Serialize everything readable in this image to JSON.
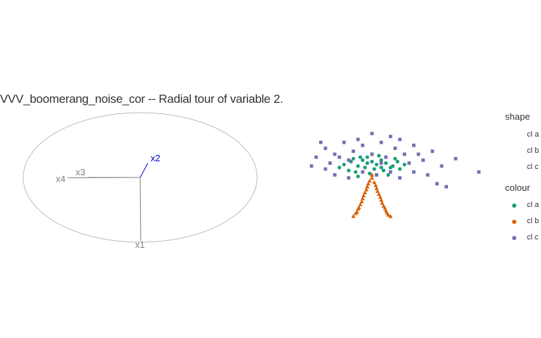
{
  "title": "VVV_boomerang_noise_cor -- Radial tour of variable 2.",
  "legend": {
    "shape_title": "shape",
    "colour_title": "colour",
    "shape_items": [
      {
        "label": "cl a",
        "shape": "none"
      },
      {
        "label": "cl b",
        "shape": "none"
      },
      {
        "label": "cl c",
        "shape": "none"
      }
    ],
    "colour_items": [
      {
        "label": "cl a",
        "color": "#1b9e77",
        "shape": "circle"
      },
      {
        "label": "cl b",
        "color": "#d95f02",
        "shape": "triangle"
      },
      {
        "label": "cl c",
        "color": "#7570b3",
        "shape": "square"
      }
    ]
  },
  "chart_data": {
    "type": "scatter",
    "subtype": "radial-tour-biplot",
    "title": "VVV_boomerang_noise_cor -- Radial tour of variable 2.",
    "axes_circle": true,
    "grid": false,
    "axis_vectors": [
      {
        "name": "x1",
        "x": 0.005,
        "y": -0.98,
        "color": "#808080"
      },
      {
        "name": "x2",
        "x": 0.065,
        "y": 0.22,
        "color": "#0000cc"
      },
      {
        "name": "x3",
        "x": -0.45,
        "y": 0.0,
        "color": "#808080"
      },
      {
        "name": "x4",
        "x": -0.62,
        "y": -0.005,
        "color": "#808080"
      }
    ],
    "series": [
      {
        "name": "cl a",
        "color": "#1b9e77",
        "shape": "circle",
        "points": [
          [
            -0.6,
            0.15
          ],
          [
            -0.45,
            0.25
          ],
          [
            -0.3,
            0.1
          ],
          [
            -0.2,
            0.3
          ],
          [
            -0.1,
            0.2
          ],
          [
            0.0,
            0.25
          ],
          [
            0.1,
            0.15
          ],
          [
            0.2,
            0.3
          ],
          [
            0.3,
            0.2
          ],
          [
            0.45,
            0.1
          ],
          [
            0.55,
            0.25
          ],
          [
            -0.5,
            -0.05
          ],
          [
            -0.35,
            -0.1
          ],
          [
            -0.15,
            0.05
          ],
          [
            0.05,
            0.0
          ],
          [
            0.25,
            -0.05
          ],
          [
            0.4,
            0.05
          ],
          [
            0.6,
            0.0
          ],
          [
            -0.25,
            0.4
          ],
          [
            0.15,
            0.45
          ],
          [
            -0.05,
            -0.15
          ],
          [
            0.35,
            -0.2
          ],
          [
            -0.4,
            0.35
          ],
          [
            0.5,
            0.35
          ],
          [
            0.7,
            0.15
          ],
          [
            -0.7,
            0.05
          ],
          [
            0.0,
            0.5
          ],
          [
            -0.1,
            0.4
          ],
          [
            0.2,
            0.05
          ],
          [
            -0.3,
            -0.25
          ]
        ]
      },
      {
        "name": "cl b",
        "color": "#d95f02",
        "shape": "triangle",
        "points": [
          [
            0.0,
            -0.2
          ],
          [
            -0.05,
            -0.4
          ],
          [
            0.05,
            -0.45
          ],
          [
            -0.1,
            -0.6
          ],
          [
            0.1,
            -0.65
          ],
          [
            -0.15,
            -0.8
          ],
          [
            0.15,
            -0.85
          ],
          [
            -0.2,
            -1.0
          ],
          [
            0.2,
            -1.05
          ],
          [
            -0.25,
            -1.2
          ],
          [
            0.25,
            -1.25
          ],
          [
            -0.3,
            -1.35
          ],
          [
            0.3,
            -1.4
          ],
          [
            -0.35,
            -1.5
          ],
          [
            0.35,
            -1.55
          ],
          [
            0.0,
            -0.3
          ],
          [
            -0.08,
            -0.5
          ],
          [
            0.08,
            -0.55
          ],
          [
            -0.12,
            -0.7
          ],
          [
            0.12,
            -0.75
          ],
          [
            -0.18,
            -0.9
          ],
          [
            0.18,
            -0.95
          ],
          [
            -0.22,
            -1.1
          ],
          [
            0.22,
            -1.15
          ],
          [
            -0.28,
            -1.3
          ],
          [
            0.28,
            -1.32
          ],
          [
            -0.32,
            -1.45
          ],
          [
            0.32,
            -1.48
          ],
          [
            -0.4,
            -1.6
          ],
          [
            0.4,
            -1.6
          ]
        ]
      },
      {
        "name": "cl c",
        "color": "#7570b3",
        "shape": "square",
        "points": [
          [
            -1.2,
            0.4
          ],
          [
            -1.0,
            0.7
          ],
          [
            -0.9,
            0.2
          ],
          [
            -0.8,
            0.5
          ],
          [
            -0.6,
            0.9
          ],
          [
            -0.5,
            0.3
          ],
          [
            -0.4,
            0.6
          ],
          [
            -0.2,
            0.8
          ],
          [
            0.0,
            0.5
          ],
          [
            0.2,
            0.9
          ],
          [
            0.3,
            0.4
          ],
          [
            0.5,
            0.7
          ],
          [
            0.7,
            0.5
          ],
          [
            0.9,
            0.8
          ],
          [
            1.1,
            0.3
          ],
          [
            1.3,
            0.6
          ],
          [
            1.5,
            0.1
          ],
          [
            1.8,
            0.35
          ],
          [
            2.3,
            -0.1
          ],
          [
            1.4,
            -0.5
          ],
          [
            1.2,
            -0.2
          ],
          [
            0.9,
            -0.1
          ],
          [
            0.6,
            -0.3
          ],
          [
            0.4,
            -0.1
          ],
          [
            0.1,
            -0.2
          ],
          [
            -0.2,
            -0.1
          ],
          [
            -0.5,
            -0.3
          ],
          [
            -0.8,
            -0.2
          ],
          [
            -1.0,
            0.0
          ],
          [
            -1.3,
            0.1
          ],
          [
            0.0,
            1.2
          ],
          [
            -0.3,
            1.0
          ],
          [
            0.4,
            1.1
          ],
          [
            0.8,
            0.2
          ],
          [
            1.0,
            0.5
          ],
          [
            -0.7,
            0.4
          ],
          [
            0.6,
            1.0
          ],
          [
            1.6,
            -0.6
          ],
          [
            -1.1,
            0.9
          ],
          [
            0.2,
            0.2
          ]
        ]
      }
    ]
  }
}
